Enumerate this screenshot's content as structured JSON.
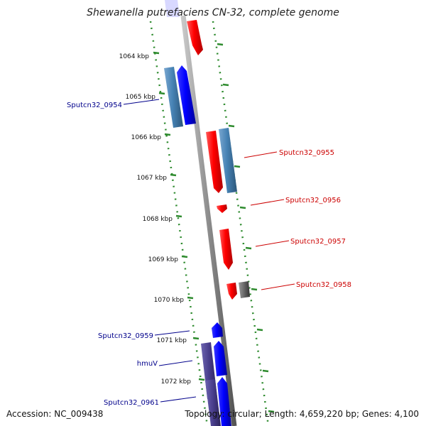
{
  "title": "Shewanella putrefaciens CN-32, complete genome",
  "footer": {
    "accession": "Accession: NC_009438",
    "topology": "Topology: circular; Length: 4,659,220 bp; Genes: 4,100"
  },
  "colors": {
    "backbone": "#8c8c8c",
    "tick": "#2e8b2e",
    "forward_gene": "#0000ff",
    "reverse_gene": "#ff0000",
    "cds_blue": "#4682b4",
    "cds_gray": "#666666",
    "cds_purple": "#483d8b",
    "label_left": "#00008b",
    "label_right": "#cc0000"
  },
  "ruler": [
    {
      "label": "1064 kbp"
    },
    {
      "label": "1065 kbp"
    },
    {
      "label": "1066 kbp"
    },
    {
      "label": "1067 kbp"
    },
    {
      "label": "1068 kbp"
    },
    {
      "label": "1069 kbp"
    },
    {
      "label": "1070 kbp"
    },
    {
      "label": "1071 kbp"
    },
    {
      "label": "1072 kbp"
    }
  ],
  "gene_labels": [
    {
      "text": "Sputcn32_0954",
      "side": "left"
    },
    {
      "text": "Sputcn32_0955",
      "side": "right"
    },
    {
      "text": "Sputcn32_0956",
      "side": "right"
    },
    {
      "text": "Sputcn32_0957",
      "side": "right"
    },
    {
      "text": "Sputcn32_0958",
      "side": "right"
    },
    {
      "text": "Sputcn32_0959",
      "side": "left"
    },
    {
      "text": "hmuV",
      "side": "left"
    },
    {
      "text": "Sputcn32_0961",
      "side": "left"
    }
  ]
}
